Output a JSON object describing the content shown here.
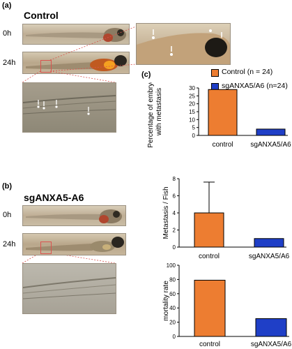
{
  "panel_a": {
    "letter": "(a)",
    "title": "Control",
    "time_0": "0h",
    "time_24": "24h"
  },
  "panel_b": {
    "letter": "(b)",
    "title": "sgANXA5-A6",
    "time_0": "0h",
    "time_24": "24h"
  },
  "panel_c": {
    "letter": "(c)",
    "legend": [
      {
        "label": "Control (n = 24)",
        "color": "#ED7D31"
      },
      {
        "label": "sgANXA5/A6 (n=24)",
        "color": "#1F3FC7"
      }
    ]
  },
  "colors": {
    "control": "#ED7D31",
    "knockdown": "#1F3FC7",
    "guide": "#d9534f"
  },
  "chart_data": [
    {
      "type": "bar",
      "categories": [
        "control",
        "sgANXA5/A6"
      ],
      "values": [
        29,
        4
      ],
      "ylabel": "Percentage of embryos with metastasis",
      "ylabel_lines": [
        "Percentage of embryos",
        "with metastasis"
      ],
      "ylim": [
        0,
        30
      ],
      "yticks": [
        0,
        5,
        10,
        15,
        20,
        25,
        30
      ],
      "grid": false
    },
    {
      "type": "bar",
      "categories": [
        "control",
        "sgANXA5/A6"
      ],
      "values": [
        4,
        1
      ],
      "error_upper": [
        7.6,
        null
      ],
      "ylabel": "Metastasis / Fish",
      "ylim": [
        0,
        8
      ],
      "yticks": [
        0,
        2,
        4,
        6,
        8
      ],
      "grid": false
    },
    {
      "type": "bar",
      "categories": [
        "control",
        "sgANXA5/A6"
      ],
      "values": [
        79,
        25
      ],
      "ylabel": "mortality rate",
      "ylim": [
        0,
        100
      ],
      "yticks": [
        0,
        20,
        40,
        60,
        80,
        100
      ],
      "grid": false
    }
  ]
}
